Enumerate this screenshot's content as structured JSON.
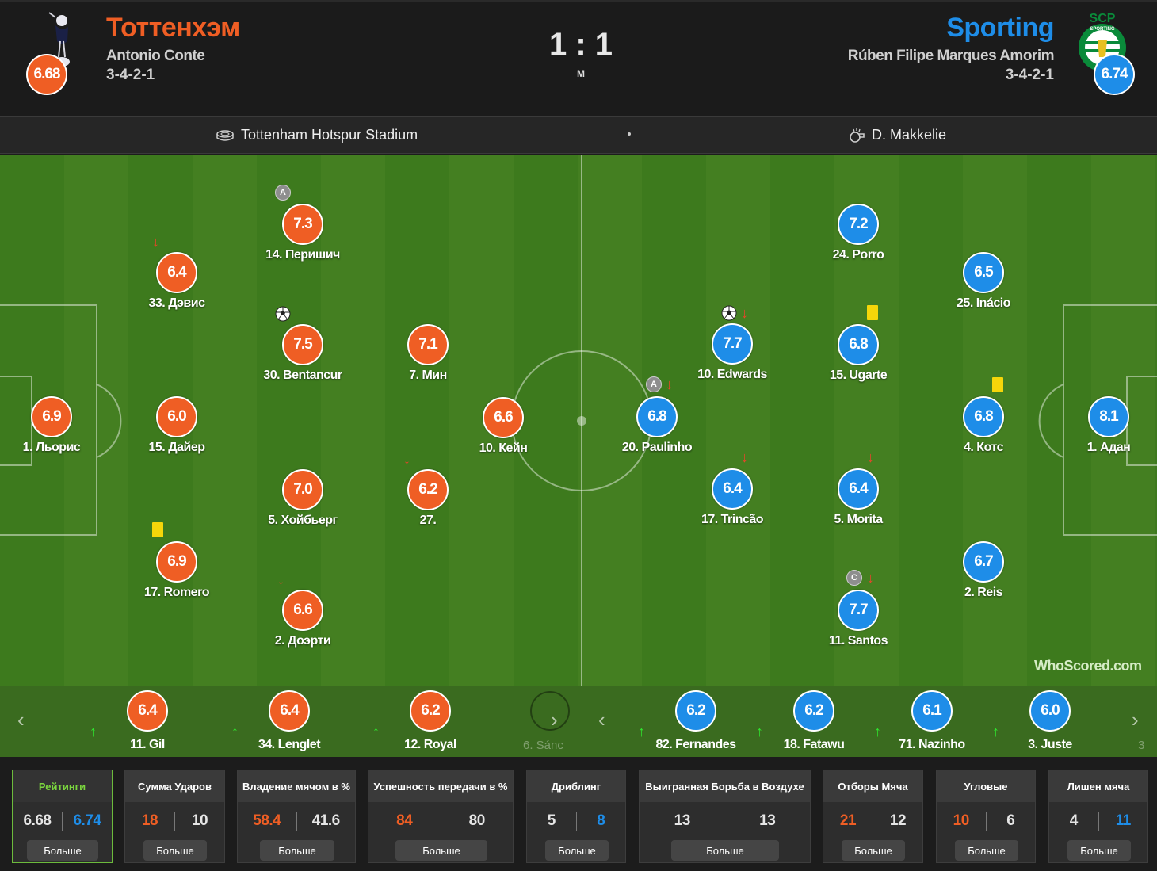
{
  "header": {
    "home_team": "Тоттенхэм",
    "home_manager": "Antonio Conte",
    "home_formation": "3-4-2-1",
    "home_rating": "6.68",
    "away_team": "Sporting",
    "away_manager": "Rúben Filipe Marques Amorim",
    "away_formation": "3-4-2-1",
    "away_rating": "6.74",
    "score": "1 : 1",
    "status": "M",
    "away_logo_text": "SCP",
    "away_logo_ring": "SPORTING"
  },
  "info": {
    "venue": "Tottenham Hotspur Stadium",
    "referee": "D. Makkelie",
    "venue_icon": "stadium-icon",
    "referee_icon": "whistle-icon"
  },
  "colors": {
    "home": "#ef5e24",
    "away": "#1e8de8",
    "pitch_dark": "#3d7a1d",
    "pitch_light": "#447f21",
    "active_tab": "#7bd63e"
  },
  "pitch": {
    "home_players": [
      {
        "rating": "6.9",
        "name": "1. Льорис"
      },
      {
        "rating": "6.4",
        "name": "33. Дэвис"
      },
      {
        "rating": "6.0",
        "name": "15. Дайер"
      },
      {
        "rating": "6.9",
        "name": "17. Romero"
      },
      {
        "rating": "7.3",
        "name": "14. Перишич"
      },
      {
        "rating": "7.5",
        "name": "30. Bentancur"
      },
      {
        "rating": "7.0",
        "name": "5. Хойбьерг"
      },
      {
        "rating": "6.6",
        "name": "2. Доэрти"
      },
      {
        "rating": "7.1",
        "name": "7. Мин"
      },
      {
        "rating": "6.2",
        "name": "27."
      },
      {
        "rating": "6.6",
        "name": "10. Кейн"
      }
    ],
    "away_players": [
      {
        "rating": "8.1",
        "name": "1. Адан"
      },
      {
        "rating": "6.5",
        "name": "25. Inácio"
      },
      {
        "rating": "6.8",
        "name": "4. Котс"
      },
      {
        "rating": "6.7",
        "name": "2. Reis"
      },
      {
        "rating": "7.2",
        "name": "24. Porro"
      },
      {
        "rating": "6.8",
        "name": "15. Ugarte"
      },
      {
        "rating": "6.4",
        "name": "5. Morita"
      },
      {
        "rating": "7.7",
        "name": "11. Santos"
      },
      {
        "rating": "7.7",
        "name": "10. Edwards"
      },
      {
        "rating": "6.4",
        "name": "17. Trincão"
      },
      {
        "rating": "6.8",
        "name": "20. Paulinho"
      }
    ],
    "badges": {
      "captain_home": "A",
      "captain_away": "A",
      "captain_santos": "C"
    },
    "watermark": "WhoScored.com"
  },
  "subs": {
    "home": [
      {
        "rating": "6.4",
        "name": "11. Gil"
      },
      {
        "rating": "6.4",
        "name": "34. Lenglet"
      },
      {
        "rating": "6.2",
        "name": "12. Royal"
      }
    ],
    "home_faded": "6. Sánc",
    "away": [
      {
        "rating": "6.2",
        "name": "82. Fernandes"
      },
      {
        "rating": "6.2",
        "name": "18. Fatawu"
      },
      {
        "rating": "6.1",
        "name": "71. Nazinho"
      },
      {
        "rating": "6.0",
        "name": "3. Juste"
      }
    ],
    "away_faded": "3"
  },
  "stats": [
    {
      "title": "Рейтинги",
      "home": "6.68",
      "away": "6.74",
      "more": "Больше"
    },
    {
      "title": "Сумма Ударов",
      "home": "18",
      "away": "10",
      "more": "Больше"
    },
    {
      "title": "Владение мячом в %",
      "home": "58.4",
      "away": "41.6",
      "more": "Больше"
    },
    {
      "title": "Успешность передачи в %",
      "home": "84",
      "away": "80",
      "more": "Больше"
    },
    {
      "title": "Дриблинг",
      "home": "5",
      "away": "8",
      "more": "Больше"
    },
    {
      "title": "Выигранная Борьба в Воздухе",
      "home": "13",
      "away": "13",
      "more": "Больше"
    },
    {
      "title": "Отборы Мяча",
      "home": "21",
      "away": "12",
      "more": "Больше"
    },
    {
      "title": "Угловые",
      "home": "10",
      "away": "6",
      "more": "Больше"
    },
    {
      "title": "Лишен мяча",
      "home": "4",
      "away": "11",
      "more": "Больше"
    }
  ]
}
